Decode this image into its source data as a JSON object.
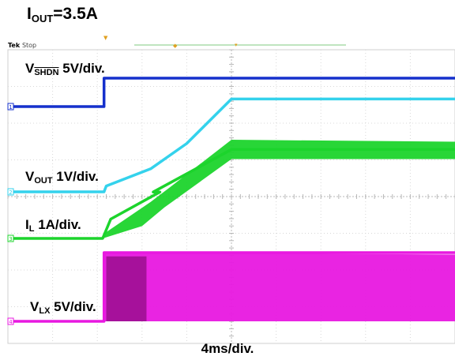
{
  "chart_data": {
    "type": "line",
    "title": {
      "prefix": "I",
      "sub": "OUT",
      "suffix": "=3.5A"
    },
    "instrument": {
      "brand": "Tek",
      "state": "Stop"
    },
    "xlabel": "4ms/div.",
    "x_divisions": 10,
    "y_divisions": 8,
    "grid": true,
    "series": [
      {
        "id": "1",
        "name": "SHDN",
        "label": {
          "prefix": "V",
          "sub": "SHDN",
          "sub_overline": true,
          "suffix": " 5V/div."
        },
        "color": "#1530cc",
        "scale": "5V/div.",
        "points": [
          [
            0,
            0
          ],
          [
            2.15,
            0
          ],
          [
            2.15,
            1.5
          ],
          [
            10,
            1.5
          ]
        ]
      },
      {
        "id": "2",
        "name": "VOUT",
        "label": {
          "prefix": "V",
          "sub": "OUT",
          "suffix": "  1V/div."
        },
        "color": "#34d2ec",
        "scale": "1V/div.",
        "points": [
          [
            0,
            0
          ],
          [
            2.15,
            0
          ],
          [
            2.2,
            0.15
          ],
          [
            3.2,
            0.6
          ],
          [
            4.0,
            1.25
          ],
          [
            5.0,
            2.4
          ],
          [
            10,
            2.4
          ]
        ]
      },
      {
        "id": "3",
        "name": "IL",
        "label": {
          "prefix": "I",
          "sub": "L",
          "suffix": " 1A/div."
        },
        "color": "#1cd42c",
        "scale": "1A/div.",
        "band": true,
        "points": [
          [
            0,
            0
          ],
          [
            2.12,
            0
          ],
          [
            2.3,
            0.5
          ],
          [
            3.4,
            1.2
          ],
          [
            3.25,
            1.2
          ],
          [
            5.0,
            2.3
          ],
          [
            10,
            2.3
          ]
        ],
        "ripple_low": [
          [
            2.12,
            0
          ],
          [
            3.0,
            0.32
          ],
          [
            3.5,
            0.8
          ],
          [
            5.0,
            2.05
          ],
          [
            10,
            2.05
          ]
        ],
        "ripple_high": [
          [
            2.12,
            0.1
          ],
          [
            3.2,
            0.95
          ],
          [
            3.6,
            1.3
          ],
          [
            5.0,
            2.55
          ],
          [
            10,
            2.5
          ]
        ]
      },
      {
        "id": "4",
        "name": "VLX",
        "label": {
          "prefix": "V",
          "sub": "LX",
          "suffix": " 5V/div."
        },
        "color": "#e818e0",
        "scale": "5V/div.",
        "band": true,
        "points": [
          [
            0,
            0
          ],
          [
            2.15,
            0
          ],
          [
            2.15,
            1.85
          ],
          [
            10,
            1.85
          ]
        ],
        "ripple_low": [
          [
            2.15,
            0
          ],
          [
            10,
            0
          ]
        ],
        "ripple_high": [
          [
            2.15,
            1.85
          ],
          [
            10,
            1.8
          ]
        ]
      }
    ]
  }
}
